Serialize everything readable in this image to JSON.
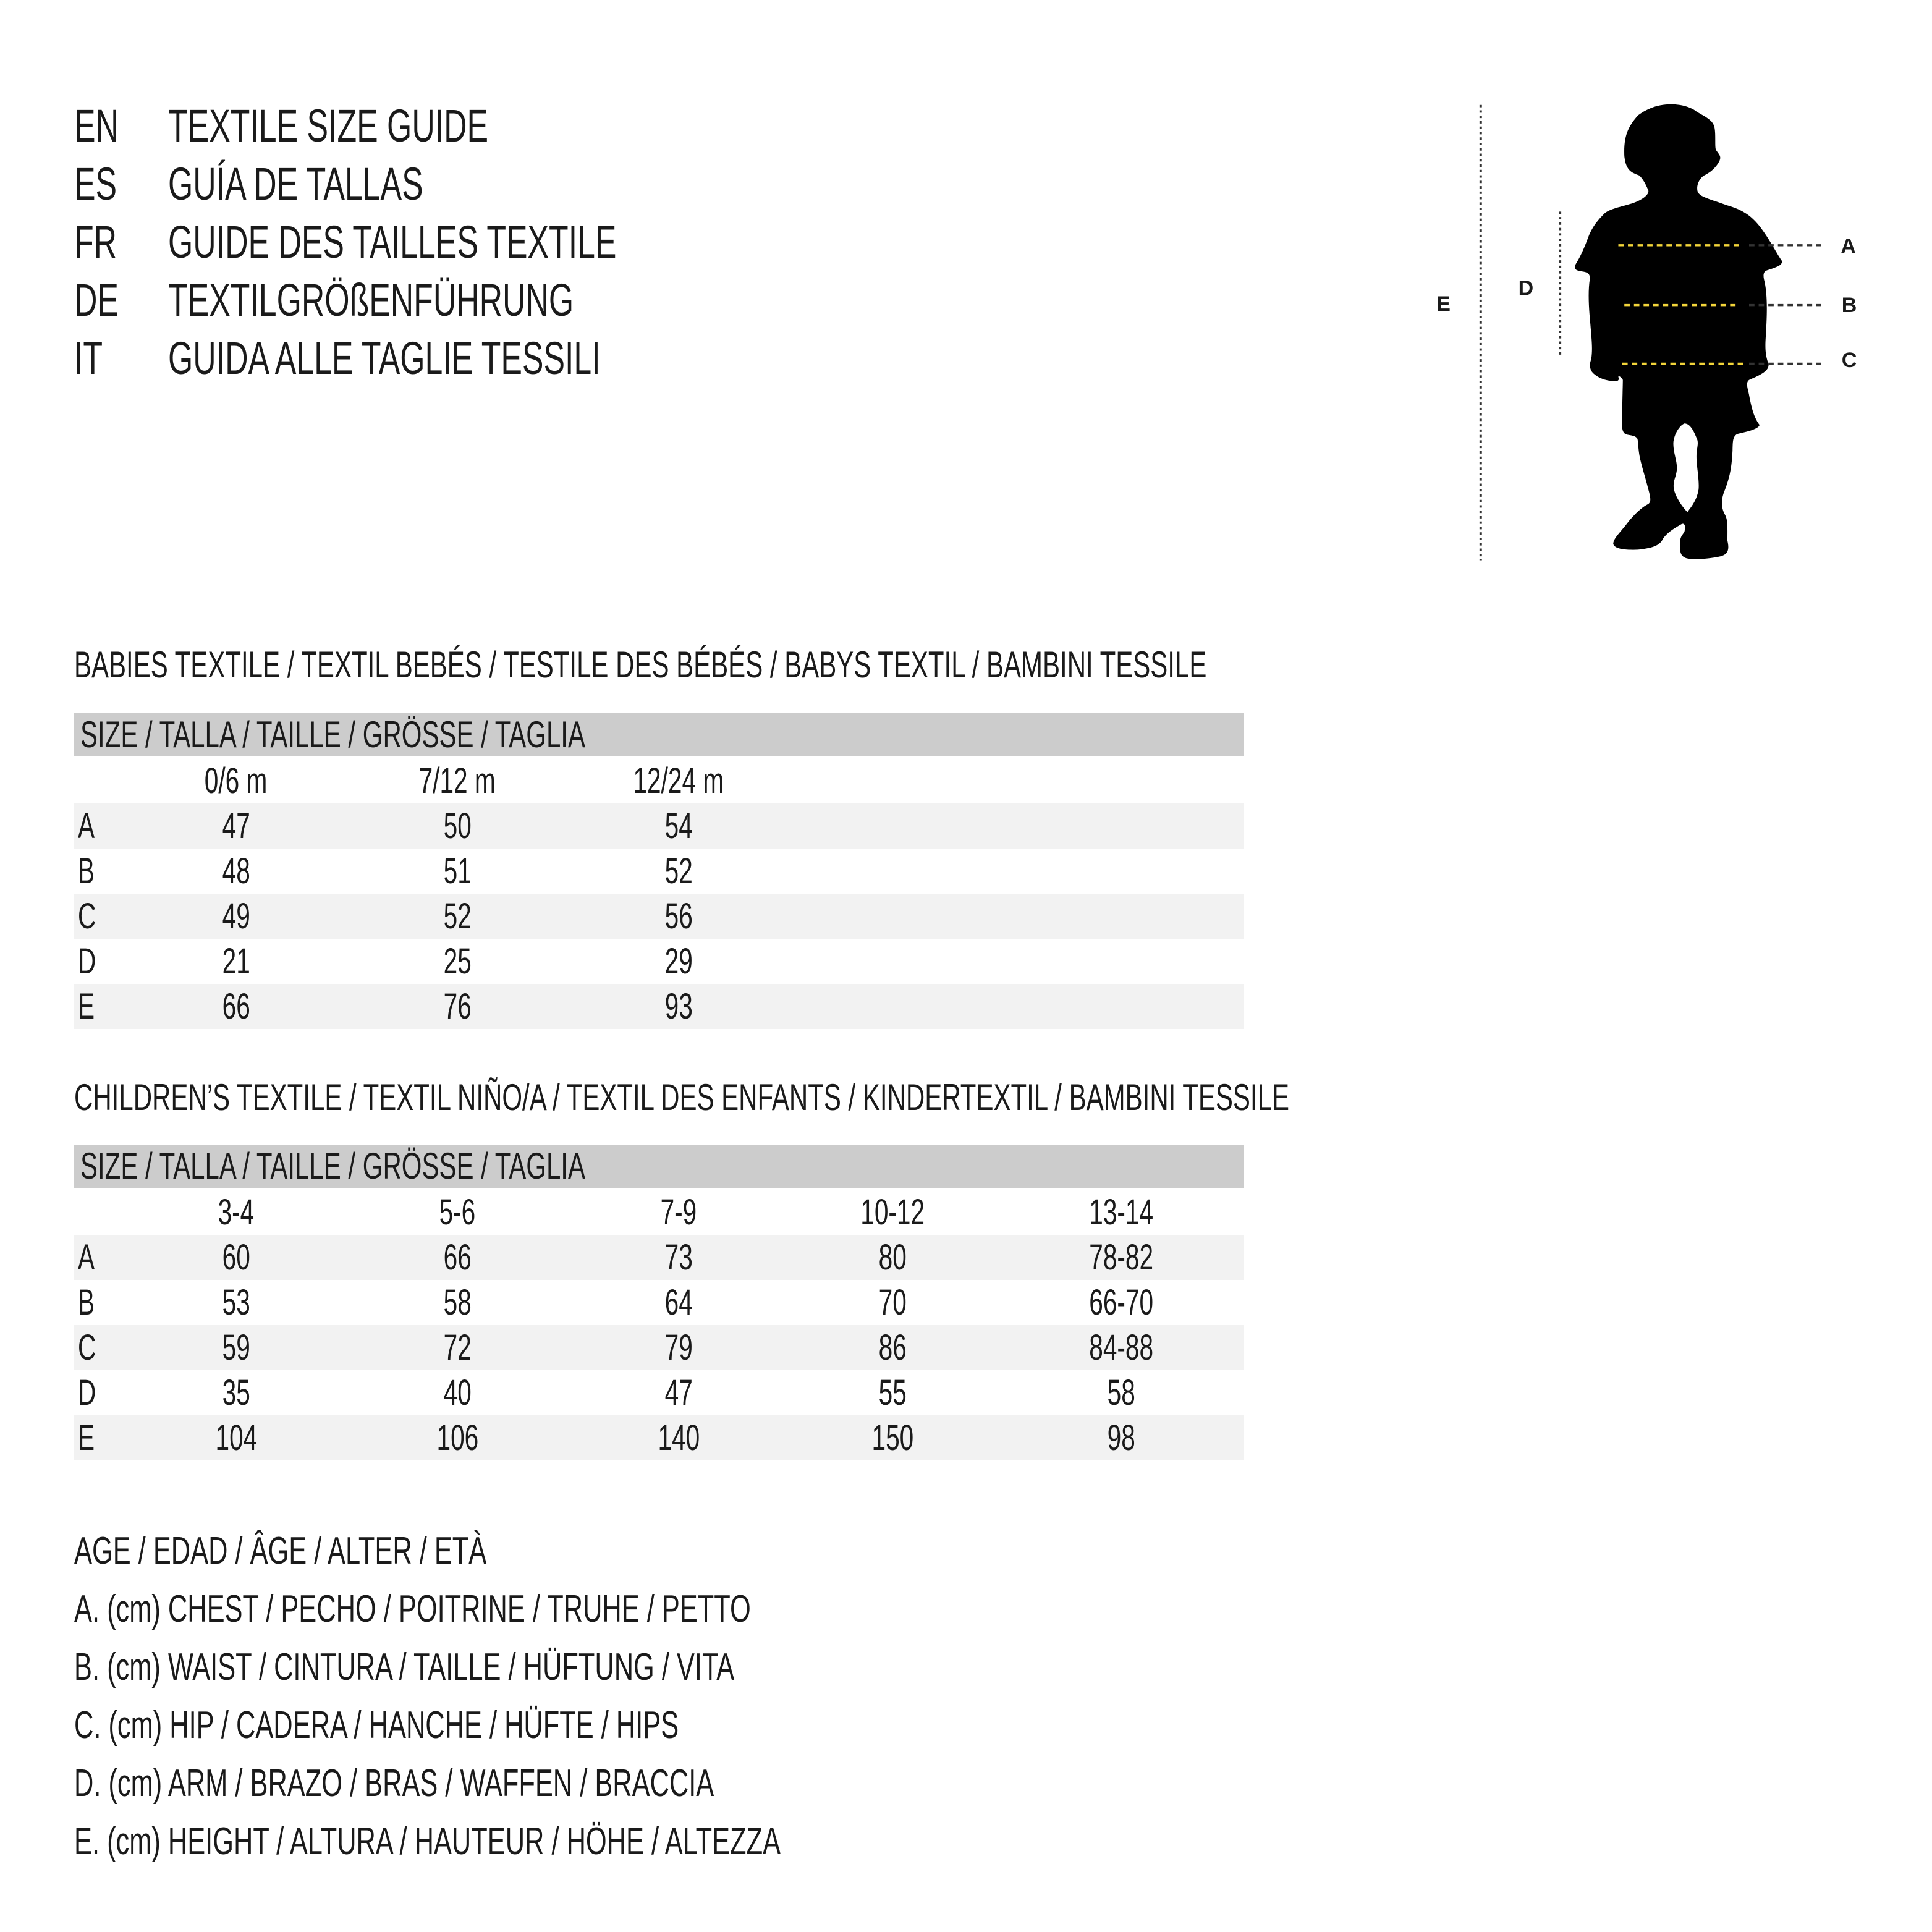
{
  "header": [
    {
      "code": "EN",
      "title": "TEXTILE SIZE GUIDE"
    },
    {
      "code": "ES",
      "title": "GUÍA DE TALLAS"
    },
    {
      "code": "FR",
      "title": "GUIDE DES TAILLES TEXTILE"
    },
    {
      "code": "DE",
      "title": "TEXTILGRÖßENFÜHRUNG"
    },
    {
      "code": "IT",
      "title": "GUIDA ALLE TAGLIE TESSILI"
    }
  ],
  "babies": {
    "title": "BABIES TEXTILE / TEXTIL BEBÉS / TESTILE DES BÉBÉS / BABYS TEXTIL / BAMBINI TESSILE",
    "size_label": "SIZE / TALLA / TAILLE / GRÖSSE / TAGLIA",
    "columns": [
      "0/6 m",
      "7/12 m",
      "12/24 m"
    ],
    "rows": [
      {
        "label": "A",
        "values": [
          "47",
          "50",
          "54"
        ]
      },
      {
        "label": "B",
        "values": [
          "48",
          "51",
          "52"
        ]
      },
      {
        "label": "C",
        "values": [
          "49",
          "52",
          "56"
        ]
      },
      {
        "label": "D",
        "values": [
          "21",
          "25",
          "29"
        ]
      },
      {
        "label": "E",
        "values": [
          "66",
          "76",
          "93"
        ]
      }
    ]
  },
  "children": {
    "title": "CHILDREN’S TEXTILE / TEXTIL NIÑO/A / TEXTIL DES ENFANTS / KINDERTEXTIL / BAMBINI TESSILE",
    "size_label": "SIZE / TALLA / TAILLE / GRÖSSE / TAGLIA",
    "columns": [
      "3-4",
      "5-6",
      "7-9",
      "10-12",
      "13-14"
    ],
    "rows": [
      {
        "label": "A",
        "values": [
          "60",
          "66",
          "73",
          "80",
          "78-82"
        ]
      },
      {
        "label": "B",
        "values": [
          "53",
          "58",
          "64",
          "70",
          "66-70"
        ]
      },
      {
        "label": "C",
        "values": [
          "59",
          "72",
          "79",
          "86",
          "84-88"
        ]
      },
      {
        "label": "D",
        "values": [
          "35",
          "40",
          "47",
          "55",
          "58"
        ]
      },
      {
        "label": "E",
        "values": [
          "104",
          "106",
          "140",
          "150",
          "98"
        ]
      }
    ]
  },
  "legend": [
    "AGE / EDAD / ÂGE / ALTER / ETÀ",
    "A. (cm) CHEST / PECHO / POITRINE / TRUHE / PETTO",
    "B. (cm) WAIST / CINTURA / TAILLE / HÜFTUNG / VITA",
    "C. (cm) HIP / CADERA / HANCHE / HÜFTE / HIPS",
    "D. (cm) ARM / BRAZO / BRAS / WAFFEN / BRACCIA",
    "E. (cm) HEIGHT / ALTURA / HAUTEUR / HÖHE / ALTEZZA"
  ],
  "figure": {
    "icon": "child-silhouette-icon",
    "labels": {
      "A": "A",
      "B": "B",
      "C": "C",
      "D": "D",
      "E": "E"
    },
    "colors": {
      "measure_line": "#f2d43a",
      "guide_line": "#333333",
      "silhouette": "#000000",
      "header_bar": "#cccccc",
      "row_alt": "#f2f2f2"
    }
  }
}
